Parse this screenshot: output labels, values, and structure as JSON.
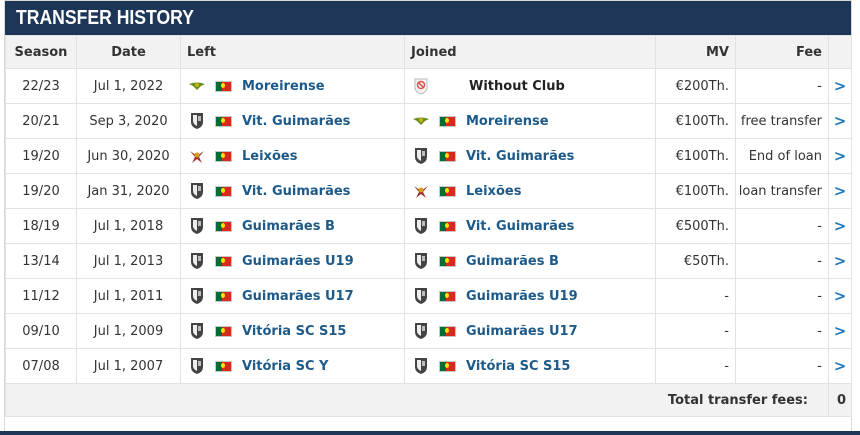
{
  "header": {
    "title": "TRANSFER HISTORY"
  },
  "columns": {
    "season": "Season",
    "date": "Date",
    "left": "Left",
    "joined": "Joined",
    "mv": "MV",
    "fee": "Fee"
  },
  "rows": [
    {
      "season": "22/23",
      "date": "Jul 1, 2022",
      "left": {
        "club": "Moreirense",
        "crest": "moreirense-crest-icon",
        "flag": "portugal-flag-icon"
      },
      "joined": {
        "club": "Without Club",
        "crest": "without-club-icon",
        "flag": ""
      },
      "mv": "€200Th.",
      "fee": "-"
    },
    {
      "season": "20/21",
      "date": "Sep 3, 2020",
      "left": {
        "club": "Vit. Guimarães",
        "crest": "vitoria-crest-icon",
        "flag": "portugal-flag-icon"
      },
      "joined": {
        "club": "Moreirense",
        "crest": "moreirense-crest-icon",
        "flag": "portugal-flag-icon"
      },
      "mv": "€100Th.",
      "fee": "free transfer"
    },
    {
      "season": "19/20",
      "date": "Jun 30, 2020",
      "left": {
        "club": "Leixões",
        "crest": "leixoes-crest-icon",
        "flag": "portugal-flag-icon"
      },
      "joined": {
        "club": "Vit. Guimarães",
        "crest": "vitoria-crest-icon",
        "flag": "portugal-flag-icon"
      },
      "mv": "€100Th.",
      "fee": "End of loan"
    },
    {
      "season": "19/20",
      "date": "Jan 31, 2020",
      "left": {
        "club": "Vit. Guimarães",
        "crest": "vitoria-crest-icon",
        "flag": "portugal-flag-icon"
      },
      "joined": {
        "club": "Leixões",
        "crest": "leixoes-crest-icon",
        "flag": "portugal-flag-icon"
      },
      "mv": "€100Th.",
      "fee": "loan transfer"
    },
    {
      "season": "18/19",
      "date": "Jul 1, 2018",
      "left": {
        "club": "Guimarães B",
        "crest": "vitoria-crest-icon",
        "flag": "portugal-flag-icon"
      },
      "joined": {
        "club": "Vit. Guimarães",
        "crest": "vitoria-crest-icon",
        "flag": "portugal-flag-icon"
      },
      "mv": "€500Th.",
      "fee": "-"
    },
    {
      "season": "13/14",
      "date": "Jul 1, 2013",
      "left": {
        "club": "Guimarães U19",
        "crest": "vitoria-crest-icon",
        "flag": "portugal-flag-icon"
      },
      "joined": {
        "club": "Guimarães B",
        "crest": "vitoria-crest-icon",
        "flag": "portugal-flag-icon"
      },
      "mv": "€50Th.",
      "fee": "-"
    },
    {
      "season": "11/12",
      "date": "Jul 1, 2011",
      "left": {
        "club": "Guimarães U17",
        "crest": "vitoria-crest-icon",
        "flag": "portugal-flag-icon"
      },
      "joined": {
        "club": "Guimarães U19",
        "crest": "vitoria-crest-icon",
        "flag": "portugal-flag-icon"
      },
      "mv": "-",
      "fee": "-"
    },
    {
      "season": "09/10",
      "date": "Jul 1, 2009",
      "left": {
        "club": "Vitória SC S15",
        "crest": "vitoria-crest-icon",
        "flag": "portugal-flag-icon"
      },
      "joined": {
        "club": "Guimarães U17",
        "crest": "vitoria-crest-icon",
        "flag": "portugal-flag-icon"
      },
      "mv": "-",
      "fee": "-"
    },
    {
      "season": "07/08",
      "date": "Jul 1, 2007",
      "left": {
        "club": "Vitória SC Y",
        "crest": "vitoria-crest-icon",
        "flag": "portugal-flag-icon"
      },
      "joined": {
        "club": "Vitória SC S15",
        "crest": "vitoria-crest-icon",
        "flag": "portugal-flag-icon"
      },
      "mv": "-",
      "fee": "-"
    }
  ],
  "footer": {
    "total_label": "Total transfer fees:",
    "total_value": "0"
  },
  "arrow_glyph": ">",
  "colors": {
    "header_bg": "#1d3557",
    "link": "#1d5a8a",
    "arrow": "#1d75bc",
    "flag_green": "#046a38",
    "flag_red": "#da291c"
  }
}
